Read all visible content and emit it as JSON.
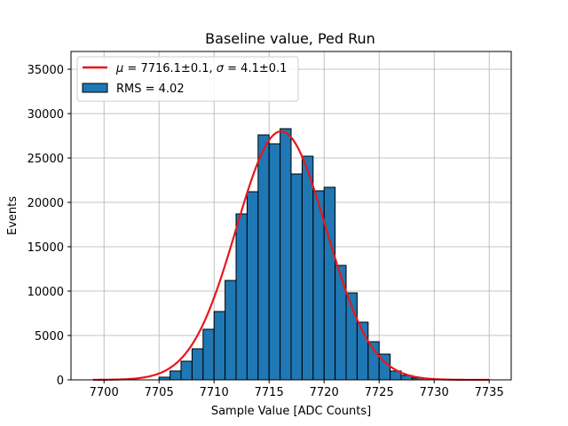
{
  "chart_data": {
    "type": "bar",
    "title": "Baseline value, Ped Run",
    "xlabel": "Sample Value [ADC Counts]",
    "ylabel": "Events",
    "xlim": [
      7697,
      7737
    ],
    "ylim": [
      0,
      37000
    ],
    "xticks": [
      7700,
      7705,
      7710,
      7715,
      7720,
      7725,
      7730,
      7735
    ],
    "yticks": [
      0,
      5000,
      10000,
      15000,
      20000,
      25000,
      30000,
      35000
    ],
    "grid": true,
    "legend_position": "top-left",
    "bin_edges": [
      7699,
      7700,
      7701,
      7702,
      7703,
      7704,
      7705,
      7706,
      7707,
      7708,
      7709,
      7710,
      7711,
      7712,
      7713,
      7714,
      7715,
      7716,
      7717,
      7718,
      7719,
      7720,
      7721,
      7722,
      7723,
      7724,
      7725,
      7726,
      7727,
      7728,
      7729,
      7730,
      7731,
      7732,
      7733,
      7734,
      7735
    ],
    "values": [
      0,
      0,
      0,
      0,
      0,
      0,
      300,
      1000,
      2100,
      3500,
      5700,
      7700,
      11200,
      18700,
      21200,
      27600,
      26600,
      28300,
      23200,
      25200,
      21300,
      21700,
      12900,
      9800,
      6500,
      4300,
      2900,
      1000,
      500,
      200,
      0,
      0,
      0,
      0,
      0,
      0
    ],
    "histogram": {
      "name": "RMS = 4.02",
      "fill_color": "#1f77b4",
      "edge_color": "#000000"
    },
    "fit": {
      "name": "μ = 7716.1±0.1, σ = 4.1±0.1",
      "color": "#e8171b",
      "mu": 7716.1,
      "sigma": 4.1,
      "amplitude": 28000,
      "x_range": [
        7699,
        7735
      ]
    },
    "legend": {
      "fit_label_math_mu": "μ",
      "fit_label_mu_rest": " = 7716.1±0.1, ",
      "fit_label_math_sigma": "σ",
      "fit_label_sigma_rest": " = 4.1±0.1",
      "hist_label": "RMS = 4.02"
    }
  }
}
